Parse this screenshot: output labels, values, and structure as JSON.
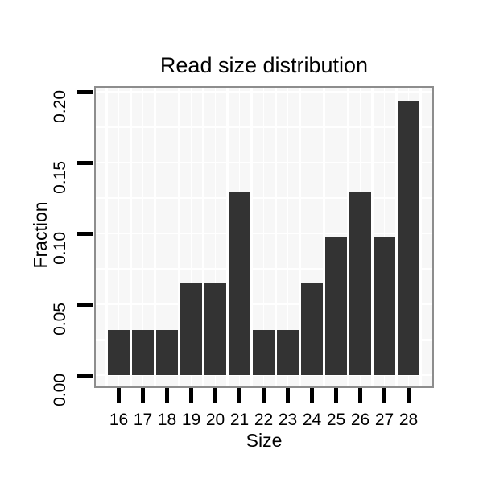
{
  "chart_data": {
    "type": "bar",
    "title": "Read size distribution",
    "xlabel": "Size",
    "ylabel": "Fraction",
    "categories": [
      "16",
      "17",
      "18",
      "19",
      "20",
      "21",
      "22",
      "23",
      "24",
      "25",
      "26",
      "27",
      "28"
    ],
    "values": [
      0.032,
      0.032,
      0.032,
      0.065,
      0.065,
      0.129,
      0.032,
      0.032,
      0.065,
      0.097,
      0.129,
      0.097,
      0.194
    ],
    "yticks": [
      0,
      0.05,
      0.1,
      0.15,
      0.2
    ],
    "ytick_labels": [
      "0.00",
      "0.05",
      "0.10",
      "0.15",
      "0.20"
    ],
    "yminor": [
      0.025,
      0.075,
      0.125,
      0.175
    ],
    "ylim": [
      -0.009,
      0.2035
    ],
    "grid": "white major and minor gridlines on light gray panel",
    "legend": "none",
    "colors": {
      "bar_fill": "#333333",
      "panel_background": "#f7f7f7",
      "panel_border": "#8d8d8d",
      "gridline": "#ffffff",
      "tick_mark": "#000000",
      "text": "#000000",
      "figure_background": "#ffffff"
    }
  }
}
